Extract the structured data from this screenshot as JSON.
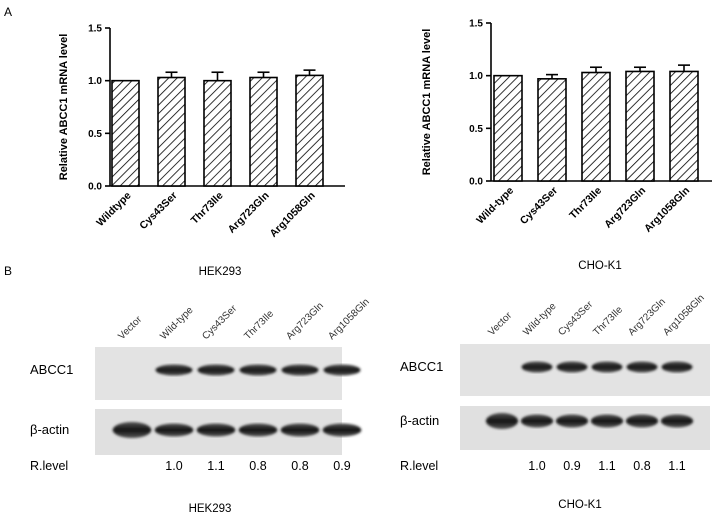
{
  "panel_a_label": "A",
  "panel_b_label": "B",
  "chart_data": [
    {
      "type": "bar",
      "categories": [
        "Wildtype",
        "Cys43Ser",
        "Thr73Ile",
        "Arg723Gln",
        "Arg1058Gln"
      ],
      "values": [
        1.0,
        1.03,
        1.0,
        1.03,
        1.05
      ],
      "errors": [
        0.0,
        0.05,
        0.08,
        0.05,
        0.05
      ],
      "ylabel": "Relative ABCC1 mRNA level",
      "ylim": [
        0,
        1.5
      ],
      "yticks": [
        "0.0",
        "0.5",
        "1.0",
        "1.5"
      ],
      "caption": "HEK293"
    },
    {
      "type": "bar",
      "categories": [
        "Wild-type",
        "Cys43Ser",
        "Thr73Ile",
        "Arg723Gln",
        "Arg1058Gln"
      ],
      "values": [
        1.0,
        0.97,
        1.03,
        1.04,
        1.04
      ],
      "errors": [
        0.0,
        0.04,
        0.05,
        0.04,
        0.06
      ],
      "ylabel": "Relative ABCC1 mRNA level",
      "ylim": [
        0,
        1.5
      ],
      "yticks": [
        "0.0",
        "0.5",
        "1.0",
        "1.5"
      ],
      "caption": "CHO-K1"
    }
  ],
  "blots": [
    {
      "lanes": [
        "Vector",
        "Wild-type",
        "Cys43Ser",
        "Thr73Ile",
        "Arg723Gln",
        "Arg1058Gln"
      ],
      "rows": [
        "ABCC1",
        "β-actin"
      ],
      "rlevel_label": "R.level",
      "rlevels": [
        "1.0",
        "1.1",
        "0.8",
        "0.8",
        "0.9"
      ],
      "caption": "HEK293"
    },
    {
      "lanes": [
        "Vector",
        "Wild-type",
        "Cys43Ser",
        "Thr73Ile",
        "Arg723Gln",
        "Arg1058Gln"
      ],
      "rows": [
        "ABCC1",
        "β-actin"
      ],
      "rlevel_label": "R.level",
      "rlevels": [
        "1.0",
        "0.9",
        "1.1",
        "0.8",
        "1.1"
      ],
      "caption": "CHO-K1"
    }
  ]
}
